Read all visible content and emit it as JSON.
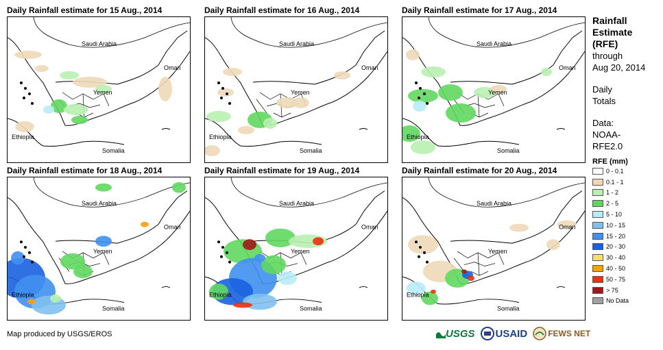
{
  "panels": [
    {
      "title": "Daily Rainfall estimate for 15 Aug., 2014",
      "rain": "p1"
    },
    {
      "title": "Daily Rainfall estimate for 16 Aug., 2014",
      "rain": "p2"
    },
    {
      "title": "Daily Rainfall estimate for 17 Aug., 2014",
      "rain": "p3"
    },
    {
      "title": "Daily Rainfall estimate for 18 Aug., 2014",
      "rain": "p4"
    },
    {
      "title": "Daily Rainfall estimate for 19 Aug., 2014",
      "rain": "p5"
    },
    {
      "title": "Daily Rainfall estimate for 20 Aug., 2014",
      "rain": "p6"
    }
  ],
  "map_labels": {
    "saudi": "Saudi Arabia",
    "oman": "Oman",
    "yemen": "Yemen",
    "ethiopia": "Ethiopia",
    "somalia": "Somalia"
  },
  "legend": {
    "title_lines": [
      "Rainfall",
      "Estimate",
      "(RFE)"
    ],
    "through_lines": [
      "through",
      "Aug 20, 2014"
    ],
    "period_lines": [
      "Daily",
      "Totals"
    ],
    "data_lines": [
      "Data:",
      "NOAA-",
      "RFE2.0"
    ],
    "scale_title": "RFE (mm)",
    "items": [
      {
        "label": "0 - 0.1",
        "color": "#ffffff"
      },
      {
        "label": "0.1 - 1",
        "color": "#eed8b8"
      },
      {
        "label": "1 - 2",
        "color": "#b8f0b0"
      },
      {
        "label": "2 - 5",
        "color": "#60d860"
      },
      {
        "label": "5 - 10",
        "color": "#b8ecf8"
      },
      {
        "label": "10 - 15",
        "color": "#80c0f0"
      },
      {
        "label": "15 - 20",
        "color": "#4090f0"
      },
      {
        "label": "20 - 30",
        "color": "#1860e0"
      },
      {
        "label": "30 - 40",
        "color": "#f8e070"
      },
      {
        "label": "40 - 50",
        "color": "#f8a010"
      },
      {
        "label": "50 - 75",
        "color": "#f03010"
      },
      {
        "label": "> 75",
        "color": "#a01818"
      },
      {
        "label": "No Data",
        "color": "#a0a0a0"
      }
    ]
  },
  "credit": "Map produced by USGS/EROS",
  "logos": {
    "usgs": "USGS",
    "usaid": "USAID",
    "fewsnet": "FEWS NET"
  }
}
